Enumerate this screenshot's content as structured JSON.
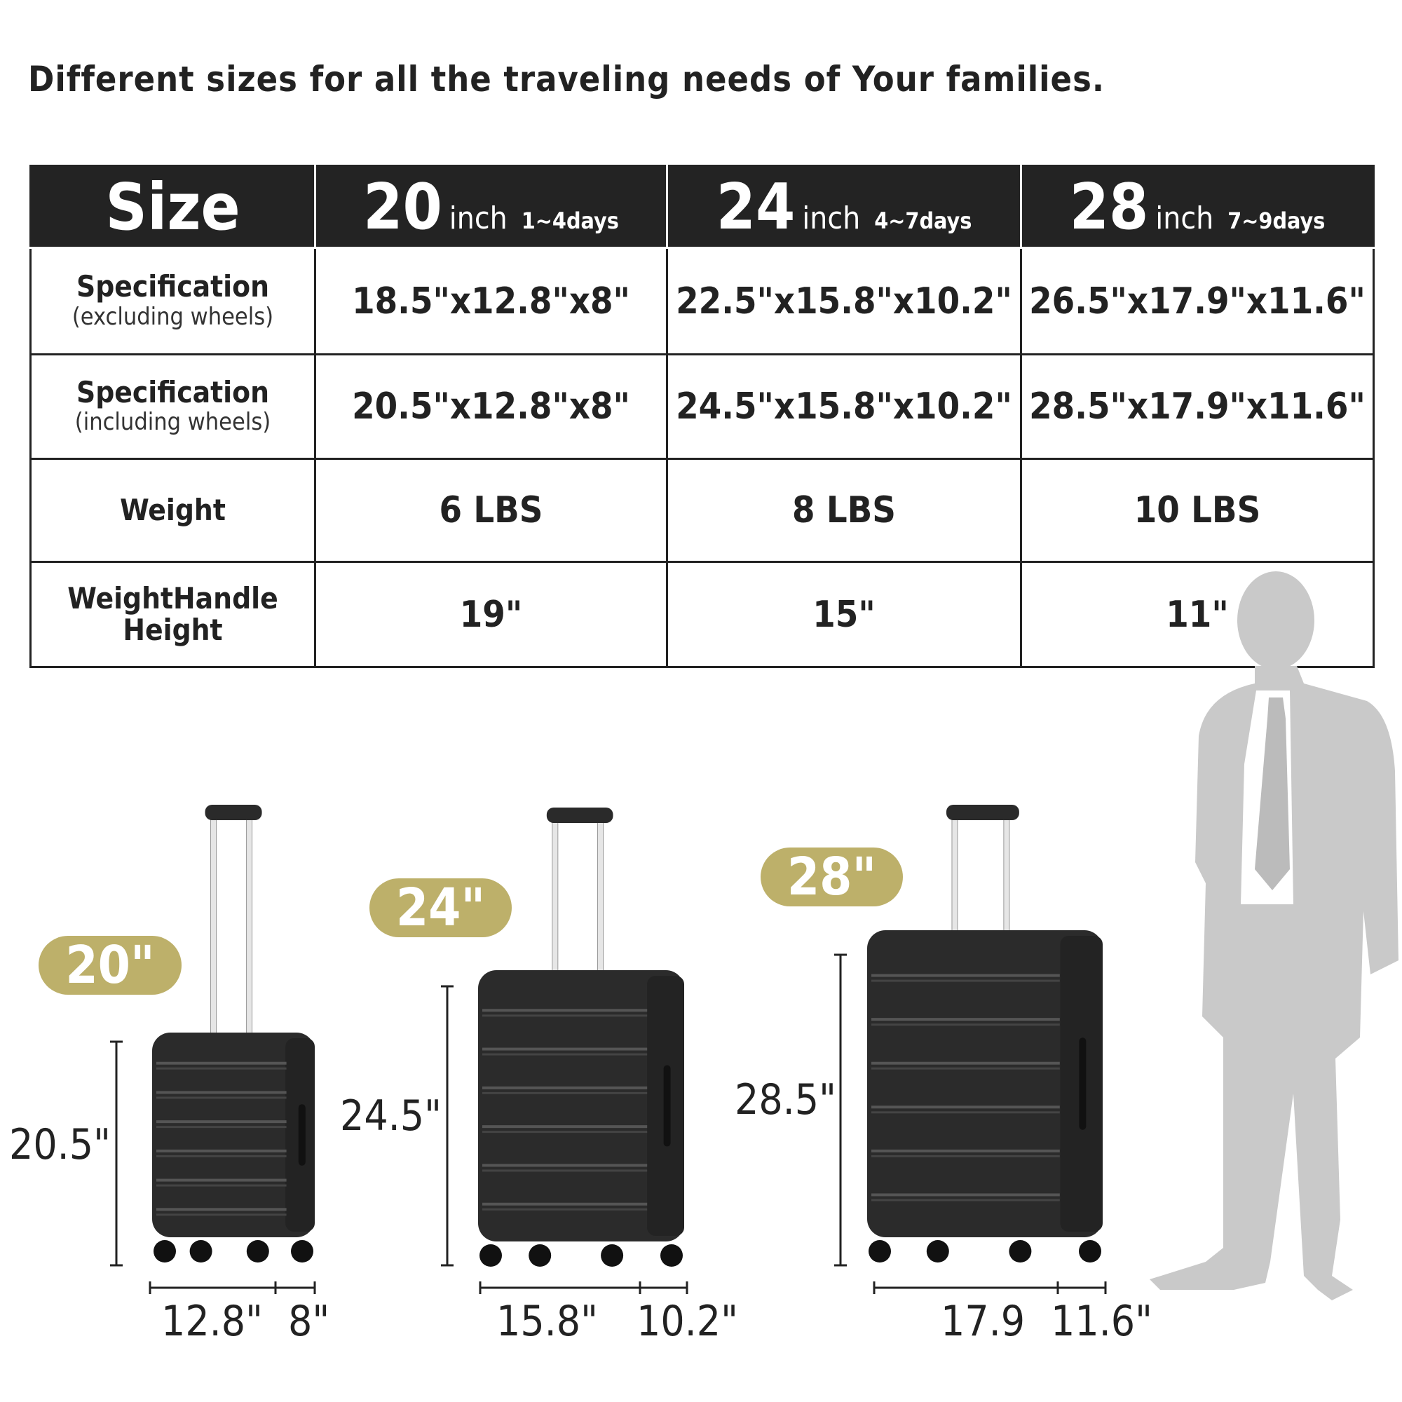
{
  "title": "Different sizes for all the traveling needs of Your families.",
  "table": {
    "header": {
      "size_label": "Size",
      "columns": [
        {
          "number": "20",
          "unit": "inch",
          "days": "1~4days"
        },
        {
          "number": "24",
          "unit": "inch",
          "days": "4~7days"
        },
        {
          "number": "28",
          "unit": "inch",
          "days": "7~9days"
        }
      ]
    },
    "rows": [
      {
        "label": "Specification",
        "sublabel": "(excluding wheels)",
        "values": [
          "18.5\"x12.8\"x8\"",
          "22.5\"x15.8\"x10.2\"",
          "26.5\"x17.9\"x11.6\""
        ]
      },
      {
        "label": "Specification",
        "sublabel": "(including wheels)",
        "values": [
          "20.5\"x12.8\"x8\"",
          "24.5\"x15.8\"x10.2\"",
          "28.5\"x17.9\"x11.6\""
        ]
      },
      {
        "label": "Weight",
        "sublabel": "",
        "values": [
          "6 LBS",
          "8 LBS",
          "10 LBS"
        ]
      },
      {
        "label": "WeightHandle",
        "sublabel": "Height",
        "values": [
          "19\"",
          "15\"",
          "11\""
        ]
      }
    ]
  },
  "suitcases": [
    {
      "badge": "20\"",
      "height": "20.5\"",
      "width": "12.8\"",
      "depth": "8\""
    },
    {
      "badge": "24\"",
      "height": "24.5\"",
      "width": "15.8\"",
      "depth": "10.2\""
    },
    {
      "badge": "28\"",
      "height": "28.5\"",
      "width": "17.9",
      "depth": "11.6\""
    }
  ],
  "colors": {
    "header_bg": "#232323",
    "badge": "#bdb06a",
    "suitcase": "#2b2b2b",
    "silhouette": "#c9c9c9"
  }
}
